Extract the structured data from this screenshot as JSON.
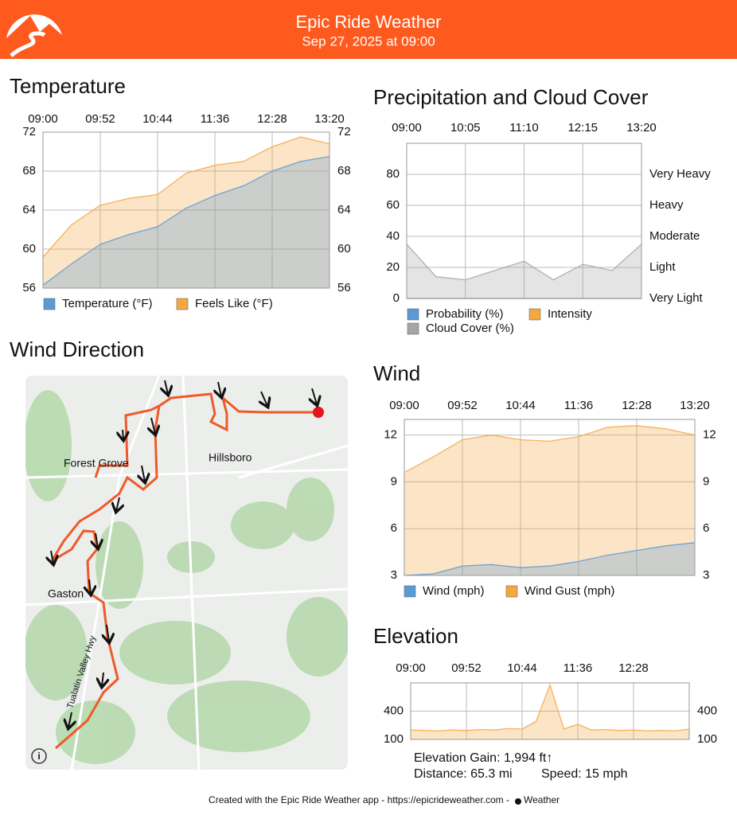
{
  "header": {
    "title": "Epic Ride Weather",
    "subtitle": "Sep 27, 2025 at 09:00"
  },
  "map": {
    "title": "Wind Direction",
    "labels": [
      "Forest Grove",
      "Hillsboro",
      "Gaston",
      "Tualatin Valley Hwy"
    ]
  },
  "elevation_stats": [
    "Elevation Gain: 1,994 ft↑",
    "Distance: 65.3 mi",
    "Speed: 15 mph"
  ],
  "footer": {
    "text": "Created with the Epic Ride Weather app - https://epicrideweather.com - ",
    "brand": "Weather"
  },
  "chart_data": [
    {
      "type": "area",
      "title": "Temperature",
      "categories": [
        "09:00",
        null,
        "09:52",
        null,
        "10:44",
        null,
        "11:36",
        null,
        "12:28",
        null,
        "13:20"
      ],
      "series": [
        {
          "name": "Temperature (°F)",
          "color": "#5b9bd5",
          "values": [
            56.3,
            58.5,
            60.5,
            61.5,
            62.3,
            64.2,
            65.5,
            66.5,
            68,
            69,
            69.5
          ]
        },
        {
          "name": "Feels Like (°F)",
          "color": "#f5a742",
          "values": [
            59.2,
            62.5,
            64.5,
            65.2,
            65.6,
            67.8,
            68.6,
            69,
            70.5,
            71.5,
            70.8
          ]
        }
      ],
      "ylim": [
        56,
        72
      ],
      "yticks": [
        56,
        60,
        64,
        68,
        72
      ],
      "y2lim": [
        56,
        72
      ],
      "y2ticks": [
        56,
        60,
        64,
        68,
        72
      ],
      "grid": true
    },
    {
      "type": "area",
      "title": "Precipitation and Cloud Cover",
      "categories": [
        "09:00",
        null,
        "10:05",
        null,
        "11:10",
        null,
        "12:15",
        null,
        "13:20"
      ],
      "series": [
        {
          "name": "Probability (%)",
          "color": "#5b9bd5",
          "values": [
            0,
            0,
            0,
            0,
            0,
            0,
            0,
            0,
            0
          ]
        },
        {
          "name": "Intensity",
          "color": "#f5a742",
          "axis": "y2",
          "values": [
            0,
            0,
            0,
            0,
            0,
            0,
            0,
            0,
            0
          ]
        },
        {
          "name": "Cloud Cover (%)",
          "color": "#a6a6a6",
          "values": [
            35,
            14,
            12,
            18,
            24,
            12,
            22,
            18,
            35
          ]
        }
      ],
      "ylim": [
        0,
        100
      ],
      "yticks": [
        0,
        20,
        40,
        60,
        80
      ],
      "y2lim": [
        0,
        100
      ],
      "y2ticks": [
        {
          "value": 0,
          "label": "Very Light"
        },
        {
          "value": 20,
          "label": "Light"
        },
        {
          "value": 40,
          "label": "Moderate"
        },
        {
          "value": 60,
          "label": "Heavy"
        },
        {
          "value": 80,
          "label": "Very Heavy"
        }
      ],
      "grid": true
    },
    {
      "type": "area",
      "title": "Wind",
      "categories": [
        "09:00",
        null,
        "09:52",
        null,
        "10:44",
        null,
        "11:36",
        null,
        "12:28",
        null,
        "13:20"
      ],
      "series": [
        {
          "name": "Wind (mph)",
          "color": "#5b9bd5",
          "values": [
            3.0,
            3.1,
            3.6,
            3.7,
            3.5,
            3.6,
            3.9,
            4.3,
            4.6,
            4.9,
            5.1
          ]
        },
        {
          "name": "Wind Gust (mph)",
          "color": "#f5a742",
          "values": [
            9.6,
            10.6,
            11.7,
            12.0,
            11.7,
            11.6,
            11.9,
            12.5,
            12.6,
            12.4,
            12.0
          ]
        }
      ],
      "ylim": [
        3,
        13
      ],
      "yticks": [
        3,
        6,
        9,
        12
      ],
      "y2lim": [
        3,
        13
      ],
      "y2ticks": [
        3,
        6,
        9,
        12
      ],
      "grid": true
    },
    {
      "type": "area",
      "title": "Elevation",
      "categories": [
        "09:00",
        null,
        null,
        null,
        "09:52",
        null,
        null,
        null,
        "10:44",
        null,
        null,
        null,
        "11:36",
        null,
        null,
        null,
        "12:28",
        null,
        null,
        null,
        null
      ],
      "series": [
        {
          "color": "#f5a742",
          "values": [
            200,
            195,
            190,
            200,
            195,
            205,
            200,
            215,
            210,
            290,
            680,
            210,
            260,
            200,
            205,
            195,
            200,
            190,
            195,
            190,
            210
          ]
        }
      ],
      "ylim": [
        100,
        700
      ],
      "yticks": [
        100,
        400
      ],
      "y2lim": [
        100,
        700
      ],
      "y2ticks": [
        100,
        400
      ],
      "grid": true
    }
  ]
}
